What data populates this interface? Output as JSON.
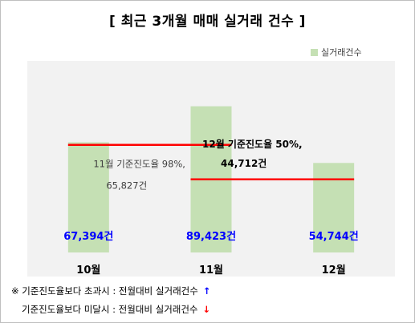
{
  "chart_data": {
    "type": "bar",
    "title": "[ 최근 3개월 매매 실거래 건수 ]",
    "categories": [
      "10월",
      "11월",
      "12월"
    ],
    "series": [
      {
        "name": "실거래건수",
        "values": [
          67394,
          89423,
          54744
        ],
        "color": "#c5e0b4"
      }
    ],
    "data_labels": [
      "67,394건",
      "89,423건",
      "54,744건"
    ],
    "label_color": "#0000ff",
    "ylim": [
      0,
      100000
    ],
    "grid": false,
    "legend_position": "top-right",
    "reference_lines": [
      {
        "name": "11월 기준진도율",
        "value": 65827,
        "spans": [
          "10월",
          "11월"
        ],
        "color": "#ff0000",
        "label_line1": "11월 기준진도율 98%,",
        "label_line2": "65,827건"
      },
      {
        "name": "12월 기준진도율",
        "value": 44712,
        "spans": [
          "11월",
          "12월"
        ],
        "color": "#ff0000",
        "label_line1": "12월 기준진도율 50%,",
        "label_line2": "44,712건"
      }
    ]
  },
  "notes": {
    "line1": "※ 기준진도율보다 초과시 : 전월대비 실거래건수",
    "line1_arrow": "↑",
    "line1_arrow_color": "#0000ff",
    "line2": "기준진도율보다 미달시 : 전월대비 실거래건수",
    "line2_arrow": "↓",
    "line2_arrow_color": "#ff0000"
  }
}
